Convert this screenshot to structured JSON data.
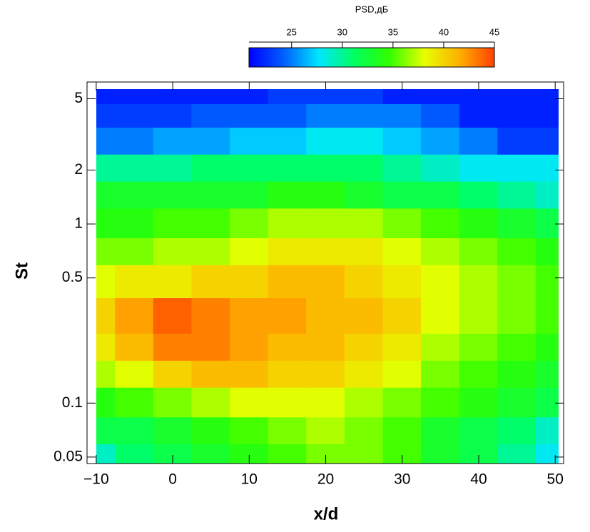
{
  "chart_data": {
    "type": "heatmap",
    "colorbar_title": "PSD,дБ",
    "xlabel": "x/d",
    "ylabel": "St",
    "x": [
      -10,
      -5,
      0,
      5,
      10,
      15,
      20,
      25,
      30,
      35,
      40,
      45,
      50
    ],
    "y": [
      0.05,
      0.07,
      0.1,
      0.15,
      0.2,
      0.3,
      0.5,
      0.7,
      1,
      1.5,
      2,
      3,
      4,
      5.5
    ],
    "values": [
      [
        29,
        31,
        32,
        33,
        34,
        35,
        36,
        36,
        35,
        33,
        32,
        30,
        28
      ],
      [
        32,
        32,
        33,
        34,
        35,
        36,
        37,
        36,
        35,
        33,
        32,
        31,
        29
      ],
      [
        34,
        35,
        36,
        37,
        38,
        38,
        38,
        37,
        36,
        35,
        34,
        33,
        32
      ],
      [
        37,
        38,
        40,
        41,
        41,
        40,
        40,
        39,
        38,
        36,
        35,
        34,
        33
      ],
      [
        39,
        41,
        43,
        43,
        42,
        41,
        41,
        40,
        39,
        37,
        36,
        35,
        34
      ],
      [
        40,
        42,
        44,
        43,
        42,
        42,
        41,
        41,
        40,
        38,
        37,
        36,
        35
      ],
      [
        38,
        39,
        39,
        40,
        40,
        41,
        41,
        40,
        39,
        38,
        37,
        36,
        35
      ],
      [
        36,
        36,
        37,
        37,
        38,
        39,
        39,
        39,
        38,
        37,
        36,
        35,
        34
      ],
      [
        34,
        34,
        35,
        35,
        36,
        37,
        37,
        37,
        36,
        35,
        34,
        33,
        32
      ],
      [
        33,
        33,
        33,
        33,
        33,
        34,
        34,
        33,
        32,
        32,
        31,
        30,
        29
      ],
      [
        30,
        30,
        30,
        31,
        31,
        31,
        31,
        31,
        30,
        29,
        28,
        28,
        28
      ],
      [
        25,
        25,
        26,
        26,
        27,
        27,
        28,
        28,
        27,
        26,
        25,
        23,
        23
      ],
      [
        23,
        23,
        23,
        24,
        24,
        24,
        25,
        25,
        25,
        24,
        22,
        22,
        22
      ],
      [
        22,
        22,
        22,
        22,
        22,
        23,
        23,
        23,
        22,
        22,
        22,
        22,
        22
      ]
    ],
    "xlim": [
      -11.2,
      51.1
    ],
    "ylim": [
      0.046,
      6.2
    ],
    "ylog": true,
    "xticks": [
      {
        "value": -10,
        "label": "−10"
      },
      0,
      10,
      20,
      30,
      40,
      50
    ],
    "yticks": [
      0.05,
      0.1,
      0.5,
      1,
      2,
      5
    ],
    "clim": [
      20.8,
      45
    ],
    "cticks": [
      25,
      30,
      35,
      40,
      45
    ],
    "colormap": [
      "#0000ff",
      "#0060ff",
      "#00e6ff",
      "#00ff60",
      "#30ff00",
      "#e6ff00",
      "#ffb000",
      "#ff4000"
    ]
  }
}
